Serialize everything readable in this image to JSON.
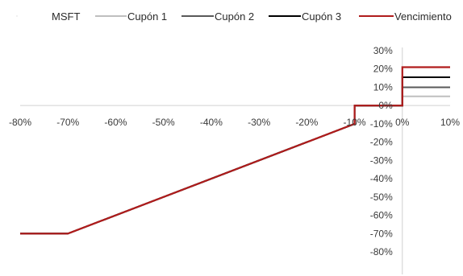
{
  "chart_data": {
    "type": "line",
    "title": "",
    "xlabel": "",
    "ylabel": "",
    "xlim": [
      -80,
      10
    ],
    "ylim": [
      -80,
      30
    ],
    "x_ticks": [
      {
        "value": -80,
        "label": "-80%"
      },
      {
        "value": -70,
        "label": "-70%"
      },
      {
        "value": -60,
        "label": "-60%"
      },
      {
        "value": -50,
        "label": "-50%"
      },
      {
        "value": -40,
        "label": "-40%"
      },
      {
        "value": -30,
        "label": "-30%"
      },
      {
        "value": -20,
        "label": "-20%"
      },
      {
        "value": -10,
        "label": "-10%"
      },
      {
        "value": 0,
        "label": "0%"
      },
      {
        "value": 10,
        "label": "10%"
      }
    ],
    "y_ticks": [
      {
        "value": 30,
        "label": "30%"
      },
      {
        "value": 20,
        "label": "20%"
      },
      {
        "value": 10,
        "label": "10%"
      },
      {
        "value": 0,
        "label": "0%"
      },
      {
        "value": -10,
        "label": "-10%"
      },
      {
        "value": -20,
        "label": "-20%"
      },
      {
        "value": -30,
        "label": "-30%"
      },
      {
        "value": -40,
        "label": "-40%"
      },
      {
        "value": -50,
        "label": "-50%"
      },
      {
        "value": -60,
        "label": "-60%"
      },
      {
        "value": -70,
        "label": "-70%"
      },
      {
        "value": -80,
        "label": "-80%"
      }
    ],
    "grid": false,
    "legend_position": "top",
    "series": [
      {
        "name": "MSFT",
        "color": "#d9d9d9",
        "points": [
          [
            -80,
            -70
          ],
          [
            -70,
            -70
          ],
          [
            -10,
            -10
          ],
          [
            -10,
            0
          ],
          [
            0,
            0
          ],
          [
            0,
            21
          ],
          [
            10,
            21
          ]
        ]
      },
      {
        "name": "Cupón 1",
        "color": "#bfbfbf",
        "points": [
          [
            -80,
            -70
          ],
          [
            -70,
            -70
          ],
          [
            -10,
            -10
          ],
          [
            -10,
            0
          ],
          [
            0,
            0
          ],
          [
            0,
            5
          ],
          [
            10,
            5
          ]
        ]
      },
      {
        "name": "Cupón 2",
        "color": "#595959",
        "points": [
          [
            -80,
            -70
          ],
          [
            -70,
            -70
          ],
          [
            -10,
            -10
          ],
          [
            -10,
            0
          ],
          [
            0,
            0
          ],
          [
            0,
            10
          ],
          [
            10,
            10
          ]
        ]
      },
      {
        "name": "Cupón 3",
        "color": "#000000",
        "points": [
          [
            -80,
            -70
          ],
          [
            -70,
            -70
          ],
          [
            -10,
            -10
          ],
          [
            -10,
            0
          ],
          [
            0,
            0
          ],
          [
            0,
            15.5
          ],
          [
            10,
            15.5
          ]
        ]
      },
      {
        "name": "Vencimiento",
        "color": "#b01c1c",
        "points": [
          [
            -80,
            -70
          ],
          [
            -70,
            -70
          ],
          [
            -10,
            -10
          ],
          [
            -10,
            0
          ],
          [
            0,
            0
          ],
          [
            0,
            21
          ],
          [
            10,
            21
          ]
        ]
      }
    ]
  }
}
